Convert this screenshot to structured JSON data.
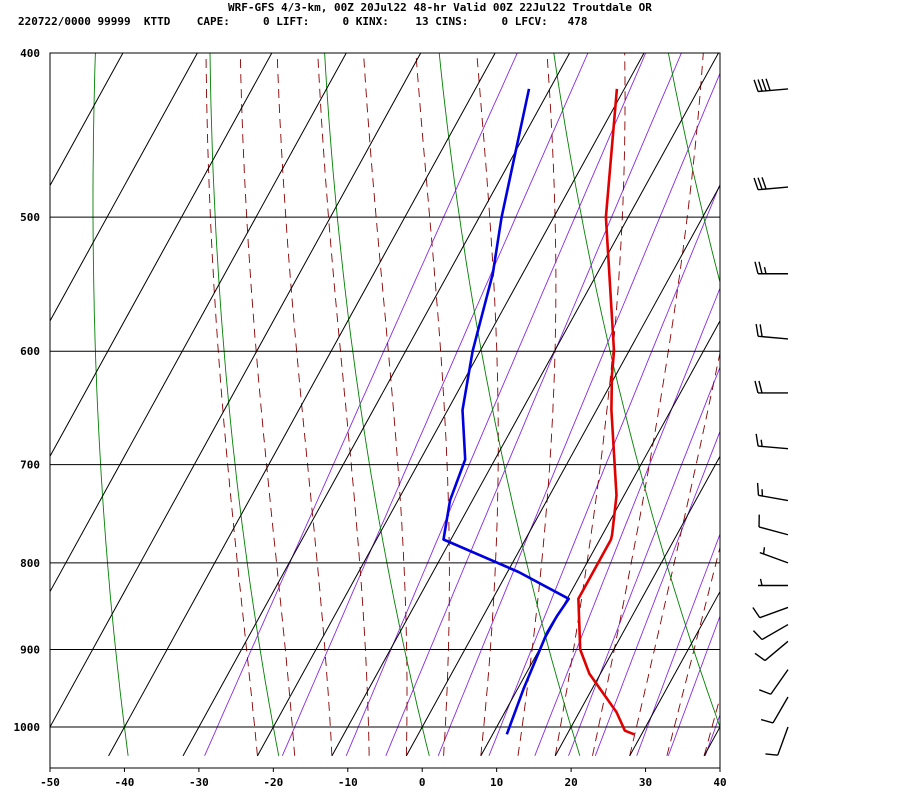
{
  "header": {
    "title": "WRF-GFS 4/3-km, 00Z 20Jul22 48-hr Valid 00Z 22Jul22 Troutdale OR",
    "stats": "220722/0000 99999  KTTD    CAPE:     0 LIFT:     0 KINX:    13 CINS:     0 LFCV:   478"
  },
  "colors": {
    "temperature": "#e00000",
    "dewpoint": "#0000e0",
    "isotherm_grid": "#000000",
    "dry_adiabat": "#008000",
    "moist_adiabat": "#8b0000",
    "mixing_ratio": "#8a2be2",
    "wind_barb": "#000000"
  },
  "chart_data": {
    "type": "skew-t log-p sounding",
    "title": "WRF-GFS 4/3-km, 00Z 20Jul22 48-hr Valid 00Z 22Jul22 Troutdale OR",
    "x_axis": {
      "label": "",
      "units": "°C",
      "range": [
        -50,
        40
      ],
      "ticks": [
        -50,
        -40,
        -30,
        -20,
        -10,
        0,
        10,
        20,
        30,
        40
      ]
    },
    "y_axis": {
      "label": "",
      "units": "hPa",
      "scale": "log",
      "range": [
        1040,
        400
      ],
      "ticks": [
        400,
        500,
        600,
        700,
        800,
        900,
        1000
      ]
    },
    "grid": true,
    "series": [
      {
        "name": "Temperature",
        "key": "temperature",
        "points": [
          {
            "p": 1010,
            "t": 29.0
          },
          {
            "p": 1005,
            "t": 27.5
          },
          {
            "p": 980,
            "t": 25.0
          },
          {
            "p": 930,
            "t": 18.5
          },
          {
            "p": 900,
            "t": 15.5
          },
          {
            "p": 840,
            "t": 11.5
          },
          {
            "p": 775,
            "t": 11.5
          },
          {
            "p": 770,
            "t": 11.3
          },
          {
            "p": 730,
            "t": 9.0
          },
          {
            "p": 650,
            "t": 2.0
          },
          {
            "p": 620,
            "t": -0.5
          },
          {
            "p": 600,
            "t": -2.0
          },
          {
            "p": 500,
            "t": -13.0
          },
          {
            "p": 420,
            "t": -21.0
          }
        ]
      },
      {
        "name": "Dewpoint",
        "key": "dewpoint",
        "points": [
          {
            "p": 1010,
            "t": 11.9
          },
          {
            "p": 950,
            "t": 10.8
          },
          {
            "p": 880,
            "t": 9.8
          },
          {
            "p": 860,
            "t": 9.9
          },
          {
            "p": 840,
            "t": 10.2
          },
          {
            "p": 810,
            "t": 1.5
          },
          {
            "p": 775,
            "t": -11.0
          },
          {
            "p": 735,
            "t": -13.0
          },
          {
            "p": 695,
            "t": -14.0
          },
          {
            "p": 650,
            "t": -18.0
          },
          {
            "p": 600,
            "t": -21.0
          },
          {
            "p": 540,
            "t": -24.0
          },
          {
            "p": 500,
            "t": -27.0
          },
          {
            "p": 420,
            "t": -32.8
          }
        ]
      }
    ],
    "wind_barbs": [
      {
        "p": 1000,
        "direction": 200,
        "speed_kt": 10
      },
      {
        "p": 960,
        "direction": 210,
        "speed_kt": 10
      },
      {
        "p": 925,
        "direction": 215,
        "speed_kt": 10
      },
      {
        "p": 890,
        "direction": 230,
        "speed_kt": 10
      },
      {
        "p": 870,
        "direction": 240,
        "speed_kt": 10
      },
      {
        "p": 850,
        "direction": 250,
        "speed_kt": 10
      },
      {
        "p": 825,
        "direction": 270,
        "speed_kt": 5
      },
      {
        "p": 800,
        "direction": 290,
        "speed_kt": 5
      },
      {
        "p": 770,
        "direction": 285,
        "speed_kt": 10
      },
      {
        "p": 735,
        "direction": 280,
        "speed_kt": 15
      },
      {
        "p": 685,
        "direction": 275,
        "speed_kt": 15
      },
      {
        "p": 635,
        "direction": 270,
        "speed_kt": 20
      },
      {
        "p": 590,
        "direction": 275,
        "speed_kt": 20
      },
      {
        "p": 540,
        "direction": 270,
        "speed_kt": 25
      },
      {
        "p": 480,
        "direction": 265,
        "speed_kt": 30
      },
      {
        "p": 420,
        "direction": 265,
        "speed_kt": 40
      }
    ]
  }
}
